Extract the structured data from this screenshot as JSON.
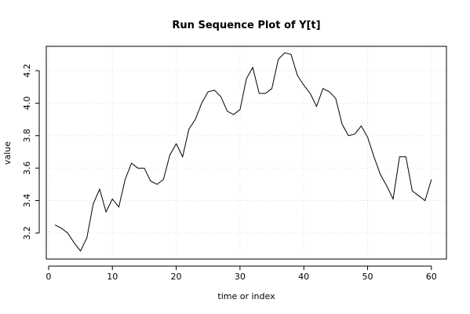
{
  "chart_data": {
    "type": "line",
    "title": "Run Sequence Plot of Y[t]",
    "xlabel": "time or index",
    "ylabel": "value",
    "xlim": [
      -0.36,
      62.36
    ],
    "ylim": [
      3.04,
      4.35
    ],
    "xticks": [
      0,
      10,
      20,
      30,
      40,
      50,
      60
    ],
    "yticks": [
      3.2,
      3.4,
      3.6,
      3.8,
      4.0,
      4.2
    ],
    "grid": true,
    "line_color": "#000000",
    "grid_color": "#dddddd",
    "series": [
      {
        "x": [
          1,
          2,
          3,
          4,
          5,
          6,
          7,
          8,
          9,
          10,
          11,
          12,
          13,
          14,
          15,
          16,
          17,
          18,
          19,
          20,
          21,
          22,
          23,
          24,
          25,
          26,
          27,
          28,
          29,
          30,
          31,
          32,
          33,
          34,
          35,
          36,
          37,
          38,
          39,
          40,
          41,
          42,
          43,
          44,
          45,
          46,
          47,
          48,
          49,
          50,
          51,
          52,
          53,
          54,
          55,
          56,
          57,
          58,
          59,
          60
        ],
        "values": [
          3.25,
          3.23,
          3.2,
          3.14,
          3.09,
          3.17,
          3.38,
          3.47,
          3.33,
          3.41,
          3.36,
          3.53,
          3.63,
          3.6,
          3.6,
          3.52,
          3.5,
          3.53,
          3.68,
          3.75,
          3.67,
          3.84,
          3.9,
          4.0,
          4.07,
          4.08,
          4.04,
          3.95,
          3.93,
          3.96,
          4.15,
          4.22,
          4.06,
          4.06,
          4.09,
          4.27,
          4.31,
          4.3,
          4.17,
          4.11,
          4.06,
          3.98,
          4.09,
          4.07,
          4.03,
          3.87,
          3.8,
          3.81,
          3.86,
          3.79,
          3.67,
          3.56,
          3.49,
          3.41,
          3.67,
          3.67,
          3.46,
          3.43,
          3.4,
          3.53
        ]
      }
    ]
  }
}
